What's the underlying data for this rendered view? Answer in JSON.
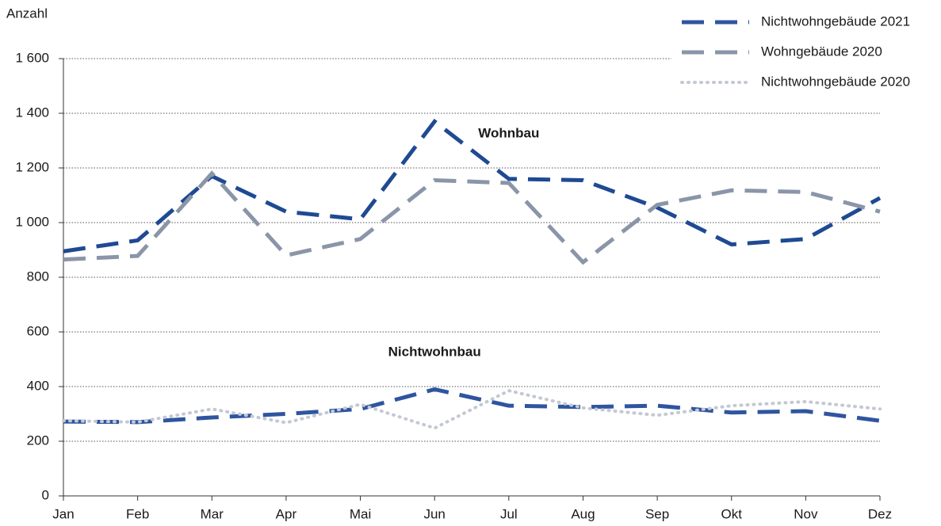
{
  "chart_data": {
    "type": "line",
    "y_label": "Anzahl",
    "categories": [
      "Jan",
      "Feb",
      "Mar",
      "Apr",
      "Mai",
      "Jun",
      "Jul",
      "Aug",
      "Sep",
      "Okt",
      "Nov",
      "Dez"
    ],
    "series": [
      {
        "color": "#1f4a93",
        "dash": "dashed",
        "values": [
          895,
          935,
          1170,
          1040,
          1012,
          1370,
          1160,
          1155,
          1055,
          920,
          940,
          1090
        ]
      },
      {
        "name": "Nichtwohngebäude 2021",
        "color": "#2f559f",
        "dash": "dashed",
        "values": [
          272,
          270,
          287,
          300,
          318,
          390,
          330,
          325,
          330,
          305,
          310,
          275
        ]
      },
      {
        "name": "Wohngebäude 2020",
        "color": "#8a95a8",
        "dash": "dashed",
        "values": [
          865,
          878,
          1180,
          880,
          940,
          1155,
          1145,
          855,
          1065,
          1118,
          1112,
          1040
        ]
      },
      {
        "name": "Nichtwohngebäude 2020",
        "color": "#c3c8d3",
        "dash": "dotted",
        "values": [
          275,
          270,
          318,
          268,
          335,
          248,
          385,
          322,
          295,
          330,
          345,
          318
        ]
      }
    ],
    "annotations": [
      {
        "text": "Wohnbau",
        "category": 6,
        "value": 1325
      },
      {
        "text": "Nichtwohnbau",
        "category": 5,
        "value": 525
      }
    ],
    "ylim": [
      0,
      1600
    ],
    "yticks": [
      0,
      200,
      400,
      600,
      800,
      {
        "value": 1000,
        "label": "1 000"
      },
      {
        "value": 1200,
        "label": "1 200"
      },
      {
        "value": 1400,
        "label": "1 400"
      },
      {
        "value": 1600,
        "label": "1 600"
      }
    ],
    "grid": true,
    "legend": "top-right"
  }
}
